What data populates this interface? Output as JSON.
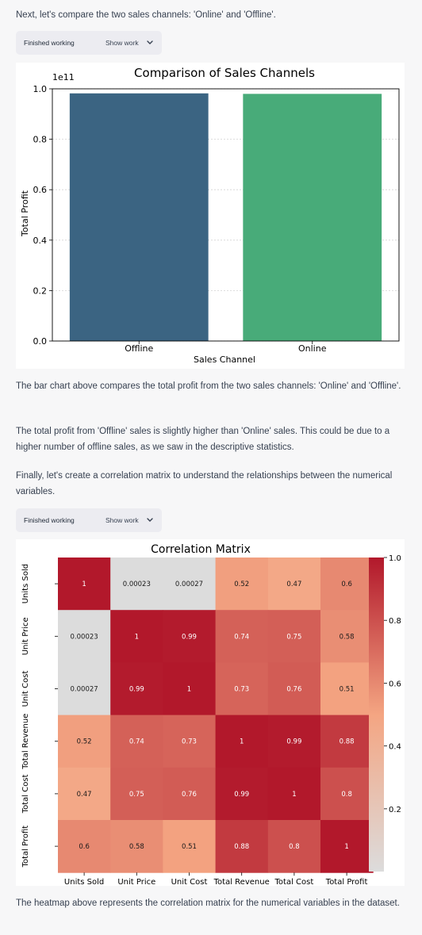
{
  "messages": {
    "intro_channels": "Next, let's compare the two sales channels: 'Online' and 'Offline'.",
    "bar_desc": "The bar chart above compares the total profit from the two sales channels: 'Online' and 'Offline'.",
    "profit_note": "The total profit from 'Offline' sales is slightly higher than 'Online' sales. This could be due to a higher number of offline sales, as we saw in the descriptive statistics.",
    "intro_corr": "Finally, let's create a correlation matrix to understand the relationships between the numerical variables.",
    "heatmap_desc": "The heatmap above represents the correlation matrix for the numerical variables in the dataset."
  },
  "work_blocks": [
    {
      "status": "Finished working",
      "toggle": "Show work"
    },
    {
      "status": "Finished working",
      "toggle": "Show work"
    }
  ],
  "icons": {
    "toggle_icon": "chevron-down-icon"
  },
  "chart_data": [
    {
      "type": "bar",
      "title": "Comparison of Sales Channels",
      "xlabel": "Sales Channel",
      "ylabel": "Total Profit",
      "categories": [
        "Offline",
        "Online"
      ],
      "values": [
        98200000000,
        98000000000
      ],
      "colors": [
        "#3b6482",
        "#48ab79"
      ],
      "ylim": [
        0,
        100000000000
      ],
      "yticks": [
        "0.0",
        "0.2",
        "0.4",
        "0.6",
        "0.8",
        "1.0"
      ],
      "offset_text": "1e11",
      "grid": true
    },
    {
      "type": "heatmap",
      "title": "Correlation Matrix",
      "labels": [
        "Units Sold",
        "Unit Price",
        "Unit Cost",
        "Total Revenue",
        "Total Cost",
        "Total Profit"
      ],
      "matrix": [
        [
          1,
          0.00023,
          0.00027,
          0.52,
          0.47,
          0.6
        ],
        [
          0.00023,
          1,
          0.99,
          0.74,
          0.75,
          0.58
        ],
        [
          0.00027,
          0.99,
          1,
          0.73,
          0.76,
          0.51
        ],
        [
          0.52,
          0.74,
          0.73,
          1,
          0.99,
          0.88
        ],
        [
          0.47,
          0.75,
          0.76,
          0.99,
          1,
          0.8
        ],
        [
          0.6,
          0.58,
          0.51,
          0.88,
          0.8,
          1
        ]
      ],
      "cell_labels": [
        [
          "1",
          "0.00023",
          "0.00027",
          "0.52",
          "0.47",
          "0.6"
        ],
        [
          "0.00023",
          "1",
          "0.99",
          "0.74",
          "0.75",
          "0.58"
        ],
        [
          "0.00027",
          "0.99",
          "1",
          "0.73",
          "0.76",
          "0.51"
        ],
        [
          "0.52",
          "0.74",
          "0.73",
          "1",
          "0.99",
          "0.88"
        ],
        [
          "0.47",
          "0.75",
          "0.76",
          "0.99",
          "1",
          "0.8"
        ],
        [
          "0.6",
          "0.58",
          "0.51",
          "0.88",
          "0.8",
          "1"
        ]
      ],
      "colorbar_ticks": [
        "0.2",
        "0.4",
        "0.6",
        "0.8",
        "1.0"
      ],
      "colorbar_tick_values": [
        0.2,
        0.4,
        0.6,
        0.8,
        1.0
      ],
      "vmin": 0.00023,
      "vmax": 1.0,
      "colormap_low": "#dcdcdc",
      "colormap_mid": "#f4a582",
      "colormap_high": "#b2182b"
    }
  ]
}
